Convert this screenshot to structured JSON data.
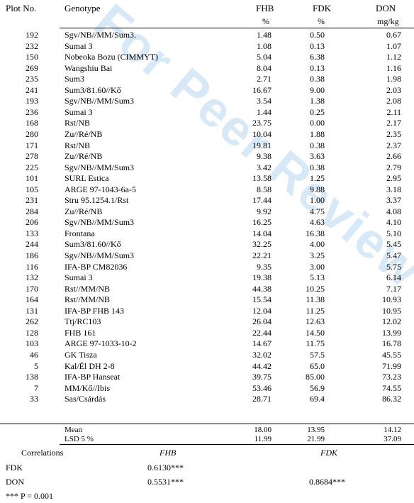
{
  "watermark": "For Peer Review Only",
  "columns": {
    "plot": "Plot No.",
    "genotype": "Genotype",
    "fhb": "FHB",
    "fdk": "FDK",
    "don": "DON",
    "fhb_unit": "%",
    "fdk_unit": "%",
    "don_unit": "mg/kg"
  },
  "rows": [
    {
      "plot": "192",
      "genotype": "Sgv/NB//MM/Sum3.",
      "fhb": "1.48",
      "fdk": "0.50",
      "don": "0.67"
    },
    {
      "plot": "232",
      "genotype": "Sumai 3",
      "fhb": "1.08",
      "fdk": "0.13",
      "don": "1.07"
    },
    {
      "plot": "150",
      "genotype": "Nobeoka Bozu (CIMMYT)",
      "fhb": "5.04",
      "fdk": "6.38",
      "don": "1.12"
    },
    {
      "plot": "269",
      "genotype": "Wangshiu Bai",
      "fhb": "8.04",
      "fdk": "0.13",
      "don": "1.16"
    },
    {
      "plot": "235",
      "genotype": "Sum3",
      "fhb": "2.71",
      "fdk": "0.38",
      "don": "1.98"
    },
    {
      "plot": "241",
      "genotype": "Sum3/81.60//Kő",
      "fhb": "16.67",
      "fdk": "9.00",
      "don": "2.03"
    },
    {
      "plot": "193",
      "genotype": "Sgv/NB//MM/Sum3",
      "fhb": "3.54",
      "fdk": "1.38",
      "don": "2.08"
    },
    {
      "plot": "236",
      "genotype": "Sumai 3",
      "fhb": "1.44",
      "fdk": "0.25",
      "don": "2.11"
    },
    {
      "plot": "168",
      "genotype": "Rst/NB",
      "fhb": "23.75",
      "fdk": "0.00",
      "don": "2.17"
    },
    {
      "plot": "280",
      "genotype": "Zu//Ré/NB",
      "fhb": "10.04",
      "fdk": "1.88",
      "don": "2.35"
    },
    {
      "plot": "171",
      "genotype": "Rst/NB",
      "fhb": "19.81",
      "fdk": "0.38",
      "don": "2.37"
    },
    {
      "plot": "278",
      "genotype": "Zu//Ré/NB",
      "fhb": "9.38",
      "fdk": "3.63",
      "don": "2.66"
    },
    {
      "plot": "225",
      "genotype": "Sgv/NB//MM/Sum3",
      "fhb": "3.42",
      "fdk": "0.38",
      "don": "2.79"
    },
    {
      "plot": "101",
      "genotype": "SURL  Estica",
      "fhb": "13.58",
      "fdk": "1.25",
      "don": "2.95"
    },
    {
      "plot": "105",
      "genotype": "ARGE 97-1043-6a-5",
      "fhb": "8.58",
      "fdk": "9.88",
      "don": "3.18"
    },
    {
      "plot": "231",
      "genotype": "Stru 95.1254.1/Rst",
      "fhb": "17.44",
      "fdk": "1.00",
      "don": "3.37"
    },
    {
      "plot": "284",
      "genotype": "Zu//Ré/NB",
      "fhb": "9.92",
      "fdk": "4.75",
      "don": "4.08"
    },
    {
      "plot": "206",
      "genotype": "Sgv/NB//MM/Sum3",
      "fhb": "16.25",
      "fdk": "4.63",
      "don": "4.10"
    },
    {
      "plot": "133",
      "genotype": "Frontana",
      "fhb": "14.04",
      "fdk": "16.38",
      "don": "5.10"
    },
    {
      "plot": "244",
      "genotype": "Sum3/81.60//Kő",
      "fhb": "32.25",
      "fdk": "4.00",
      "don": "5.45"
    },
    {
      "plot": "186",
      "genotype": "Sgv/NB//MM/Sum3",
      "fhb": "22.21",
      "fdk": "3.25",
      "don": "5.47"
    },
    {
      "plot": "116",
      "genotype": "IFA-BP    CM82036",
      "fhb": "9.35",
      "fdk": "3.00",
      "don": "5.75"
    },
    {
      "plot": "132",
      "genotype": "Sumai 3",
      "fhb": "19.38",
      "fdk": "5.13",
      "don": "6.14"
    },
    {
      "plot": "170",
      "genotype": "Rst//MM/NB",
      "fhb": "44.38",
      "fdk": "10.25",
      "don": "7.17"
    },
    {
      "plot": "164",
      "genotype": "Rst//MM/NB",
      "fhb": "15.54",
      "fdk": "11.38",
      "don": "10.93"
    },
    {
      "plot": "131",
      "genotype": "IFA-BP FHB 143",
      "fhb": "12.04",
      "fdk": "11.25",
      "don": "10.95"
    },
    {
      "plot": "262",
      "genotype": "Ttj/RC103",
      "fhb": "26.04",
      "fdk": "12.63",
      "don": "12.02"
    },
    {
      "plot": "128",
      "genotype": "FHB 161",
      "fhb": "22.44",
      "fdk": "14.50",
      "don": "13.99"
    },
    {
      "plot": "103",
      "genotype": "ARGE 97-1033-10-2",
      "fhb": "14.67",
      "fdk": "11.75",
      "don": "16.78"
    },
    {
      "plot": "46",
      "genotype": "GK Tisza",
      "fhb": "32.02",
      "fdk": "57.5",
      "don": "45.55"
    },
    {
      "plot": "5",
      "genotype": "Kal/Él DH 2-8",
      "fhb": "44.42",
      "fdk": "65.0",
      "don": "71.99"
    },
    {
      "plot": "138",
      "genotype": "IFA-BP Hanseat",
      "fhb": "39.75",
      "fdk": "85.00",
      "don": "73.23"
    },
    {
      "plot": "7",
      "genotype": "MM/Kő//Ibis",
      "fhb": "53.46",
      "fdk": "56.9",
      "don": "74.55"
    },
    {
      "plot": "33",
      "genotype": "Sas/Csárdás",
      "fhb": "28.71",
      "fdk": "69.4",
      "don": "86.32"
    }
  ],
  "summary": [
    {
      "label": "Mean",
      "fhb": "18.00",
      "fdk": "13.95",
      "don": "14.12"
    },
    {
      "label": "LSD 5 %",
      "fhb": "11.99",
      "fdk": "21.99",
      "don": "37.09"
    }
  ],
  "correlations": {
    "title": "Correlations",
    "col_fhb": "FHB",
    "col_fdk": "FDK",
    "rows": [
      {
        "label": "FDK",
        "fhb": "0.6130***",
        "fdk": ""
      },
      {
        "label": "DON",
        "fhb": "0.5531***",
        "fdk": "0.8684***"
      }
    ]
  },
  "footnote": "*** P = 0.001"
}
